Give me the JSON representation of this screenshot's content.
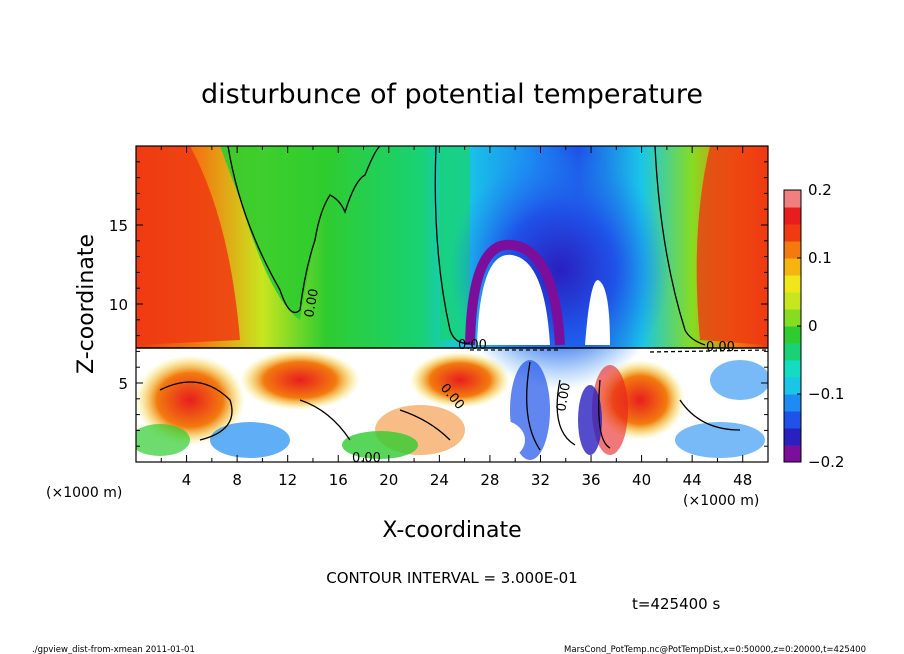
{
  "chart_data": {
    "type": "heatmap",
    "title": "disturbunce of potential temperature",
    "xlabel": "X-coordinate",
    "ylabel": "Z-coordinate",
    "x_unit": "(×1000 m)",
    "y_unit": "(×1000 m)",
    "xlim": [
      0,
      50
    ],
    "ylim": [
      0,
      20
    ],
    "x_ticks": [
      4,
      8,
      12,
      16,
      20,
      24,
      28,
      32,
      36,
      40,
      44,
      48
    ],
    "y_ticks": [
      5,
      10,
      15
    ],
    "colorbar": {
      "min": -0.2,
      "max": 0.2,
      "ticks": [
        0.2,
        0.1,
        0,
        -0.1,
        -0.2
      ],
      "tick_labels": [
        "0.2",
        "0.1",
        "0",
        "−0.1",
        "−0.2"
      ],
      "colors": [
        "#7b0f9c",
        "#2a1fbf",
        "#1f52e8",
        "#1d8cf2",
        "#19c6e8",
        "#14dcc2",
        "#18d275",
        "#2fcc2f",
        "#86dc22",
        "#c8e61f",
        "#f0e61c",
        "#f5b40f",
        "#f27a0f",
        "#ee3b12",
        "#e81e1e",
        "#f08080"
      ]
    },
    "contour_labels": [
      "0.00",
      "0.00",
      "0.00",
      "0.00",
      "0.00",
      "0.00"
    ],
    "contour_interval_text": "CONTOUR INTERVAL = 3.000E-01",
    "time_text": "t=425400  s",
    "footer_left": "./gpview_dist-from-xmean  2011-01-01",
    "footer_right": "MarsCond_PotTemp.nc@PotTempDist,x=0:50000,z=0:20000,t=425400"
  }
}
